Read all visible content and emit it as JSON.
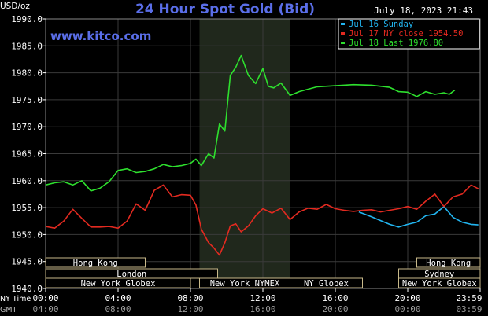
{
  "header": {
    "unit": "USD/oz",
    "title": "24 Hour Spot Gold (Bid)",
    "timestamp": "July 18, 2023 21:43",
    "website": "www.kitco.com"
  },
  "sessions": {
    "rows": [
      [
        {
          "label": "Hong Kong",
          "from": 0,
          "to": 5.5
        },
        {
          "label": "Hong Kong",
          "from": 20.5,
          "to": 24
        }
      ],
      [
        {
          "label": "London",
          "from": 0,
          "to": 9.5
        },
        {
          "label": "Sydney",
          "from": 19.5,
          "to": 24
        }
      ],
      [
        {
          "label": "New York Globex",
          "from": 0,
          "to": 8
        },
        {
          "label": "New York NYMEX",
          "from": 8.5,
          "to": 13.5
        },
        {
          "label": "NY Globex",
          "from": 13.5,
          "to": 17.5
        },
        {
          "label": "New York Globex",
          "from": 19.5,
          "to": 24
        }
      ]
    ]
  },
  "timezones": {
    "ny_label": "NY Time",
    "gmt_label": "GMT",
    "ny_ticks": [
      "00:00",
      "04:00",
      "08:00",
      "12:00",
      "16:00",
      "20:00",
      "23:59"
    ],
    "gmt_ticks": [
      "04:00",
      "08:00",
      "12:00",
      "16:00",
      "20:00",
      "00:00",
      "03:59"
    ]
  },
  "colors": {
    "background": "#000000",
    "grid": "#3a3a3a",
    "highlight": "#20281c",
    "axis_text": "#ffffff",
    "title": "#5a6ee8",
    "session_box": "#c8b98a"
  },
  "chart_data": {
    "type": "line",
    "title": "24 Hour Spot Gold (Bid)",
    "ylabel": "USD/oz",
    "ylim": [
      1940,
      1990
    ],
    "xlim": [
      0,
      24
    ],
    "yticks": [
      "1940.0",
      "1945.0",
      "1950.0",
      "1955.0",
      "1960.0",
      "1965.0",
      "1970.0",
      "1975.0",
      "1980.0",
      "1985.0",
      "1990.0"
    ],
    "xticks": [
      "00:00",
      "04:00",
      "08:00",
      "12:00",
      "16:00",
      "20:00",
      "23:59"
    ],
    "grid": true,
    "shaded_period": [
      8.5,
      13.5
    ],
    "legend_position": "top-right",
    "series": [
      {
        "name": "Jul 16 Sunday",
        "color": "#22b5f0",
        "x": [
          17.3,
          18,
          18.5,
          19,
          19.5,
          20,
          20.5,
          21,
          21.5,
          22,
          22.5,
          23,
          23.5,
          23.9
        ],
        "y": [
          1954.2,
          1953.3,
          1952.6,
          1951.9,
          1951.4,
          1951.9,
          1952.3,
          1953.5,
          1953.8,
          1955.2,
          1953.2,
          1952.3,
          1951.9,
          1951.8
        ]
      },
      {
        "name": "Jul 17 NY close 1954.50",
        "color": "#e32a20",
        "x": [
          0,
          0.5,
          1,
          1.5,
          2,
          2.5,
          3,
          3.5,
          4,
          4.5,
          5,
          5.5,
          6,
          6.5,
          7,
          7.5,
          8,
          8.3,
          8.6,
          9,
          9.3,
          9.6,
          9.9,
          10.2,
          10.5,
          10.8,
          11.2,
          11.6,
          12,
          12.5,
          13,
          13.5,
          14,
          14.5,
          15,
          15.5,
          16,
          16.5,
          17,
          17.5,
          18,
          18.5,
          19,
          19.5,
          20,
          20.5,
          21,
          21.5,
          22,
          22.5,
          23,
          23.5,
          23.9
        ],
        "y": [
          1951.5,
          1951.2,
          1952.5,
          1954.7,
          1953.0,
          1951.4,
          1951.4,
          1951.5,
          1951.2,
          1952.5,
          1955.7,
          1954.5,
          1958.2,
          1959.2,
          1957.0,
          1957.4,
          1957.3,
          1955.5,
          1951,
          1948.5,
          1947.5,
          1946.2,
          1948.5,
          1951.6,
          1952,
          1950.5,
          1951.6,
          1953.5,
          1954.8,
          1954.0,
          1954.9,
          1952.8,
          1954.2,
          1954.9,
          1954.7,
          1955.6,
          1954.8,
          1954.5,
          1954.3,
          1954.5,
          1954.6,
          1954.2,
          1954.5,
          1954.8,
          1955.2,
          1954.7,
          1956.2,
          1957.5,
          1955.2,
          1957.0,
          1957.5,
          1959.2,
          1958.5
        ]
      },
      {
        "name": "Jul 18 Last 1976.80",
        "color": "#2ee02e",
        "x": [
          0,
          0.5,
          1,
          1.5,
          2,
          2.5,
          3,
          3.5,
          4,
          4.5,
          5,
          5.5,
          6,
          6.5,
          7,
          7.5,
          8,
          8.3,
          8.6,
          9,
          9.3,
          9.6,
          9.9,
          10.2,
          10.5,
          10.8,
          11.2,
          11.6,
          12,
          12.3,
          12.6,
          13,
          13.5,
          14,
          15,
          16,
          17,
          18,
          19,
          19.5,
          20,
          20.5,
          21,
          21.5,
          22,
          22.3,
          22.6
        ],
        "y": [
          1959.2,
          1959.6,
          1959.8,
          1959.2,
          1960.0,
          1958.1,
          1958.6,
          1959.8,
          1961.9,
          1962.2,
          1961.5,
          1961.7,
          1962.2,
          1963.0,
          1962.6,
          1962.8,
          1963.2,
          1964.0,
          1962.8,
          1965.0,
          1964.2,
          1970.5,
          1969.2,
          1979.5,
          1981.0,
          1983.2,
          1979.5,
          1978.0,
          1980.8,
          1977.5,
          1977.2,
          1978.1,
          1975.8,
          1976.5,
          1977.4,
          1977.6,
          1977.8,
          1977.7,
          1977.3,
          1976.5,
          1976.4,
          1975.6,
          1976.5,
          1976.0,
          1976.3,
          1976.0,
          1976.8
        ]
      }
    ]
  }
}
